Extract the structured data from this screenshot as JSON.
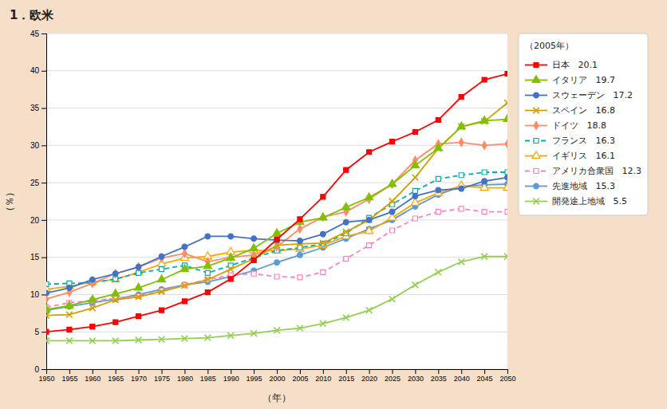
{
  "chart_data": {
    "type": "line",
    "title": "1．欧米",
    "x_label": "（年）",
    "y_label": "（％）",
    "legend_title": "（2005年）",
    "legend": "right",
    "grid": "y",
    "x": [
      1950,
      1955,
      1960,
      1965,
      1970,
      1975,
      1980,
      1985,
      1990,
      1995,
      2000,
      2005,
      2010,
      2015,
      2020,
      2025,
      2030,
      2035,
      2040,
      2045,
      2050
    ],
    "xlim": [
      1950,
      2050
    ],
    "xticks": [
      1950,
      1955,
      1960,
      1965,
      1970,
      1975,
      1980,
      1985,
      1990,
      1995,
      2000,
      2005,
      2010,
      2015,
      2020,
      2025,
      2030,
      2035,
      2040,
      2045,
      2050
    ],
    "ylim": [
      0,
      45
    ],
    "yticks": [
      0,
      5,
      10,
      15,
      20,
      25,
      30,
      35,
      40,
      45
    ],
    "series": [
      {
        "name": "日本   20.1",
        "color": "#ff0000",
        "line_style": "solid",
        "marker": "square",
        "values": [
          5.0,
          5.3,
          5.7,
          6.3,
          7.1,
          7.9,
          9.1,
          10.3,
          12.1,
          14.6,
          17.4,
          20.1,
          23.1,
          26.7,
          29.1,
          30.5,
          31.8,
          33.4,
          36.5,
          38.8,
          39.6
        ]
      },
      {
        "name": "イタリア   19.7",
        "color": "#80c000",
        "line_style": "solid",
        "marker": "triangle",
        "values": [
          8.0,
          8.5,
          9.3,
          10.1,
          10.9,
          12.0,
          13.4,
          13.8,
          14.9,
          16.2,
          18.2,
          19.7,
          20.3,
          21.7,
          23.0,
          24.8,
          27.3,
          29.6,
          32.5,
          33.3,
          33.5
        ]
      },
      {
        "name": "スウェーデン   17.2",
        "color": "#4472c4",
        "line_style": "solid",
        "marker": "circle",
        "values": [
          10.2,
          10.9,
          12.0,
          12.8,
          13.7,
          15.1,
          16.4,
          17.8,
          17.8,
          17.5,
          17.3,
          17.2,
          18.1,
          19.7,
          20.0,
          21.1,
          23.2,
          24.0,
          24.2,
          25.2,
          25.7
        ]
      },
      {
        "name": "スペイン   16.8",
        "color": "#d4a000",
        "line_style": "solid",
        "marker": "x",
        "values": [
          7.2,
          7.3,
          8.2,
          9.3,
          9.7,
          10.4,
          11.2,
          12.0,
          13.4,
          14.8,
          16.6,
          16.8,
          16.9,
          18.4,
          20.0,
          22.5,
          25.7,
          29.6,
          32.5,
          33.2,
          35.7
        ]
      },
      {
        "name": "ドイツ   18.8",
        "color": "#ff8c69",
        "line_style": "solid",
        "marker": "diamond",
        "values": [
          9.4,
          10.3,
          11.5,
          12.8,
          13.7,
          14.9,
          15.5,
          14.4,
          15.0,
          15.3,
          16.4,
          18.8,
          20.4,
          21.1,
          22.8,
          24.8,
          28.0,
          30.2,
          30.4,
          30.0,
          30.2
        ]
      },
      {
        "name": "フランス   16.3",
        "color": "#00b0b0",
        "line_style": "dashed",
        "marker": "square-open",
        "values": [
          11.4,
          11.5,
          11.6,
          12.1,
          12.9,
          13.4,
          13.9,
          12.9,
          13.9,
          14.9,
          15.9,
          16.3,
          16.8,
          18.2,
          20.3,
          22.1,
          23.9,
          25.5,
          26.0,
          26.4,
          26.4
        ]
      },
      {
        "name": "イギリス   16.1",
        "color": "#ffa500",
        "line_style": "solid",
        "marker": "triangle-open",
        "values": [
          10.7,
          11.1,
          11.7,
          12.0,
          13.0,
          14.1,
          14.9,
          15.1,
          15.7,
          15.9,
          15.9,
          16.1,
          16.6,
          17.8,
          18.5,
          20.3,
          22.3,
          23.6,
          24.6,
          24.3,
          24.3
        ]
      },
      {
        "name": "アメリカ合衆国   12.3",
        "color": "#ff80c0",
        "line_style": "dashed",
        "marker": "square-open",
        "values": [
          8.3,
          8.9,
          9.2,
          9.5,
          9.8,
          10.5,
          11.3,
          12.0,
          12.6,
          12.8,
          12.4,
          12.3,
          13.0,
          14.8,
          16.6,
          18.6,
          20.2,
          21.1,
          21.5,
          21.1,
          21.1
        ]
      },
      {
        "name": "先進地域   15.3",
        "color": "#5b9bd5",
        "line_style": "solid",
        "marker": "circle",
        "values": [
          7.9,
          8.4,
          8.9,
          9.4,
          10.0,
          10.7,
          11.3,
          11.7,
          12.4,
          13.2,
          14.3,
          15.3,
          16.3,
          17.5,
          18.8,
          20.0,
          21.8,
          23.4,
          24.5,
          24.7,
          24.8
        ]
      },
      {
        "name": "開発途上地域   5.5",
        "color": "#92d050",
        "line_style": "solid",
        "marker": "x",
        "values": [
          3.8,
          3.8,
          3.8,
          3.8,
          3.9,
          4.0,
          4.1,
          4.2,
          4.5,
          4.8,
          5.2,
          5.5,
          6.1,
          6.9,
          7.9,
          9.4,
          11.3,
          13.0,
          14.4,
          15.1,
          15.1
        ]
      }
    ]
  }
}
